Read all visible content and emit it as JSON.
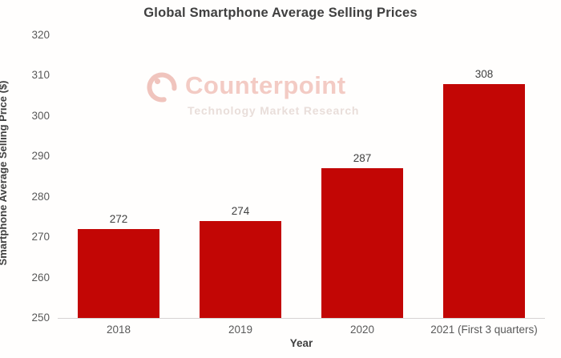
{
  "title": "Global Smartphone Average Selling Prices",
  "watermark": {
    "name": "Counterpoint",
    "tagline": "Technology Market Research",
    "logo_color": "#f0c4bd"
  },
  "colors": {
    "bar": "#c20605",
    "title_text": "#3f3f3f",
    "axis_text": "#595959",
    "value_text": "#404040",
    "axis_line": "#d6d3d3",
    "watermark_name": "#f3cbc4",
    "watermark_tagline": "#e9deda"
  },
  "chart_data": {
    "type": "bar",
    "categories": [
      "2018",
      "2019",
      "2020",
      "2021 (First 3 quarters)"
    ],
    "values": [
      272,
      274,
      287,
      308
    ],
    "title": "Global Smartphone Average Selling Prices",
    "xlabel": "Year",
    "ylabel": "Smartphone Average Selling Price ($)",
    "ylim": [
      250,
      320
    ],
    "yticks": [
      250,
      260,
      270,
      280,
      290,
      300,
      310,
      320
    ],
    "grid": false,
    "legend": false,
    "bar_color": "#c20605"
  }
}
